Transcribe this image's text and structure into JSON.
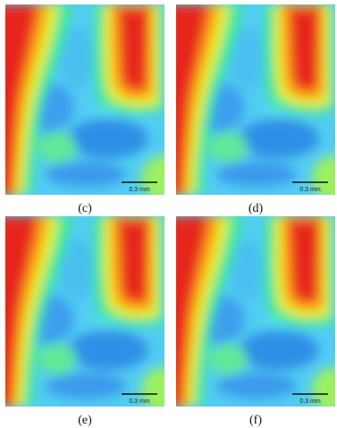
{
  "panels": [
    {
      "label": "(c)",
      "scale_bar": "0.3 mm"
    },
    {
      "label": "(d)",
      "scale_bar": "0.3 mm"
    },
    {
      "label": "(e)",
      "scale_bar": "0.3 mm"
    },
    {
      "label": "(f)",
      "scale_bar": "0.3 mm"
    }
  ]
}
